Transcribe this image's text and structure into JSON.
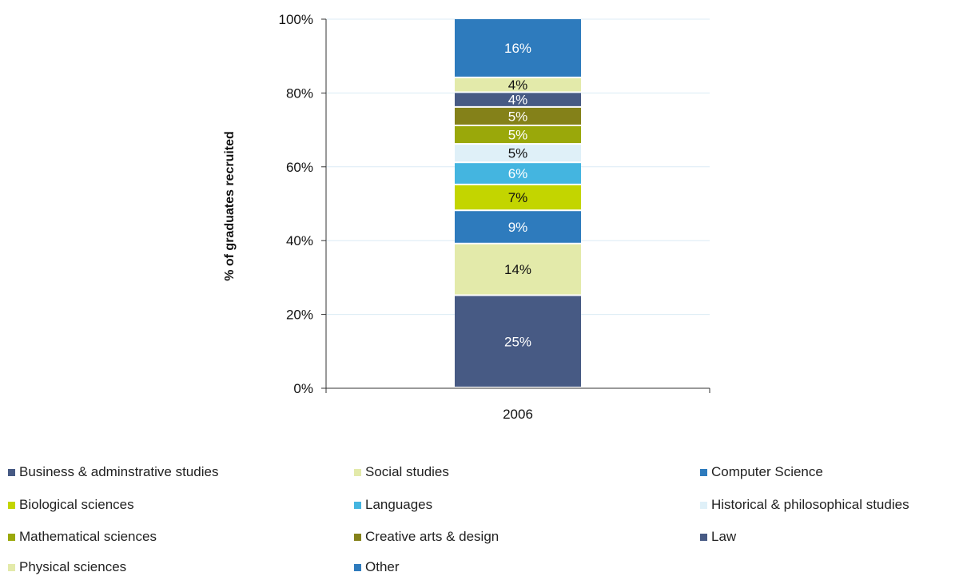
{
  "chart_data": {
    "type": "bar",
    "stacked": true,
    "categories": [
      "2006"
    ],
    "ylabel": "% of graduates recruited",
    "ylim": [
      0,
      100
    ],
    "yticks": [
      "0%",
      "20%",
      "40%",
      "60%",
      "80%",
      "100%"
    ],
    "grid": true,
    "legend_position": "bottom",
    "series": [
      {
        "name": "Business & adminstrative studies",
        "values": [
          25
        ],
        "label": "25%",
        "color": "#475a84",
        "label_color": "#ffffff"
      },
      {
        "name": "Social studies",
        "values": [
          14
        ],
        "label": "14%",
        "color": "#e3eaaa",
        "label_color": "#111111"
      },
      {
        "name": "Computer Science",
        "values": [
          9
        ],
        "label": "9%",
        "color": "#2e7bbd",
        "label_color": "#ffffff"
      },
      {
        "name": "Biological sciences",
        "values": [
          7
        ],
        "label": "7%",
        "color": "#c3d500",
        "label_color": "#111111"
      },
      {
        "name": "Languages",
        "values": [
          6
        ],
        "label": "6%",
        "color": "#44b5e0",
        "label_color": "#ffffff"
      },
      {
        "name": "Historical & philosophical studies",
        "values": [
          5
        ],
        "label": "5%",
        "color": "#dff0f8",
        "label_color": "#111111"
      },
      {
        "name": "Mathematical sciences",
        "values": [
          5
        ],
        "label": "5%",
        "color": "#9aa80a",
        "label_color": "#ffffff"
      },
      {
        "name": "Creative arts & design",
        "values": [
          5
        ],
        "label": "5%",
        "color": "#848119",
        "label_color": "#ffffff"
      },
      {
        "name": "Law",
        "values": [
          4
        ],
        "label": "4%",
        "color": "#475a84",
        "label_color": "#ffffff"
      },
      {
        "name": "Physical sciences",
        "values": [
          4
        ],
        "label": "4%",
        "color": "#e3eaaa",
        "label_color": "#111111"
      },
      {
        "name": "Other",
        "values": [
          16
        ],
        "label": "16%",
        "color": "#2e7bbd",
        "label_color": "#ffffff"
      }
    ]
  }
}
